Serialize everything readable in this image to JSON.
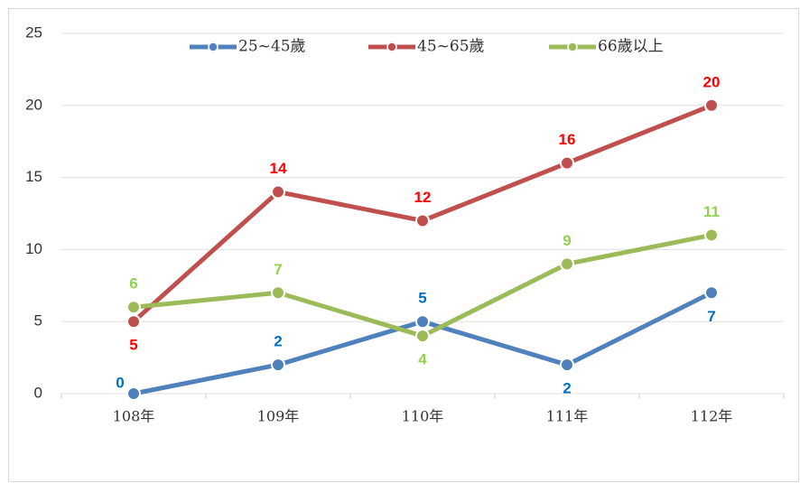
{
  "chart_data": {
    "type": "line",
    "categories": [
      "108年",
      "109年",
      "110年",
      "111年",
      "112年"
    ],
    "series": [
      {
        "name": "25~45歲",
        "color": "#4f81bd",
        "label_color": "#0070c0",
        "values": [
          0,
          2,
          5,
          2,
          7
        ]
      },
      {
        "name": "45~65歲",
        "color": "#c0504d",
        "label_color": "#ff0000",
        "values": [
          5,
          14,
          12,
          16,
          20
        ]
      },
      {
        "name": "66歲以上",
        "color": "#9bbb59",
        "label_color": "#92d050",
        "values": [
          6,
          7,
          4,
          9,
          11
        ]
      }
    ],
    "ylim": [
      0,
      25
    ],
    "yticks": [
      0,
      5,
      10,
      15,
      20,
      25
    ],
    "grid": true,
    "legend": "top"
  }
}
